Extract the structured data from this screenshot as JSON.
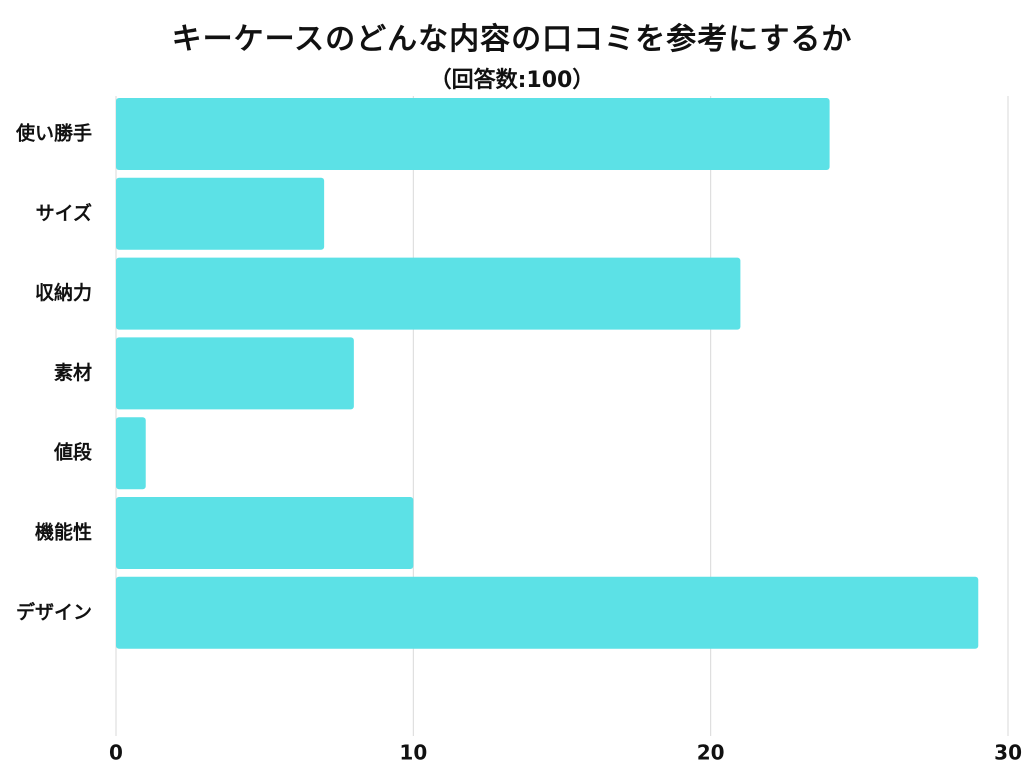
{
  "chart_data": {
    "type": "bar",
    "orientation": "horizontal",
    "title": "キーケースのどんな内容の口コミを参考にするか",
    "subtitle": "（回答数:100）",
    "categories": [
      "使い勝手",
      "サイズ",
      "収納力",
      "素材",
      "値段",
      "機能性",
      "デザイン"
    ],
    "values": [
      24,
      7,
      21,
      8,
      1,
      10,
      29
    ],
    "xlim": [
      0,
      30
    ],
    "xticks": [
      "0",
      "10",
      "20",
      "30"
    ],
    "xlabel": "",
    "ylabel": "",
    "grid": true,
    "legend": "none",
    "bar_color": "#5CE1E6",
    "grid_color": "#D9D9D9"
  }
}
